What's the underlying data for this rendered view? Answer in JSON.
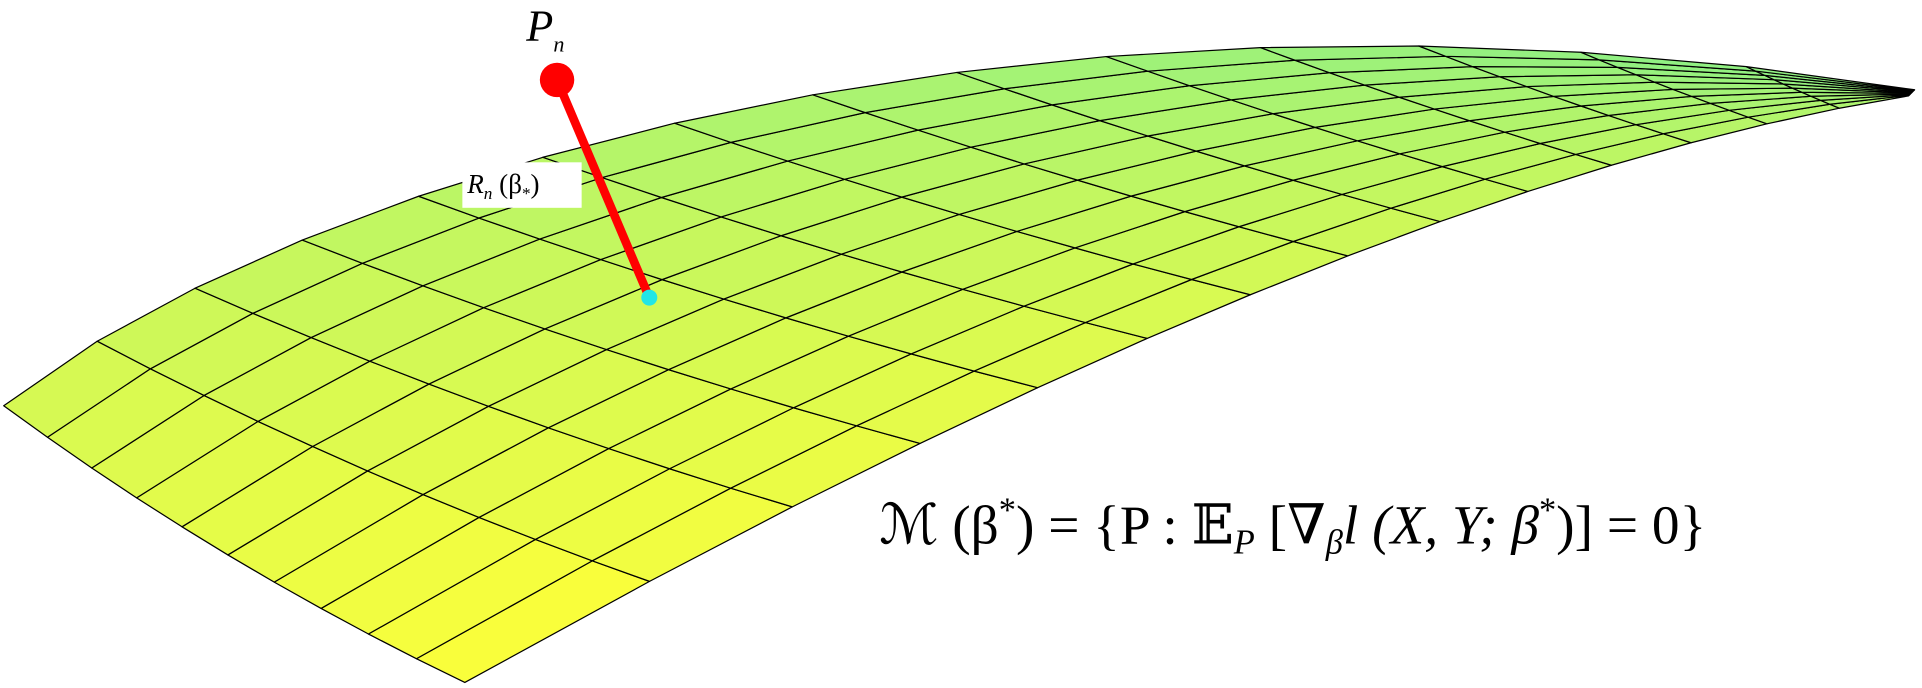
{
  "point_label": [
    "P",
    "n"
  ],
  "residual_label": [
    "R",
    "n",
    " (β",
    "*",
    ")"
  ],
  "formula": [
    "ℳ (β",
    "*",
    ") = {P : 𝔼",
    "P",
    " [∇",
    "β",
    "l (X, Y; β",
    "*",
    ")] = 0}"
  ]
}
